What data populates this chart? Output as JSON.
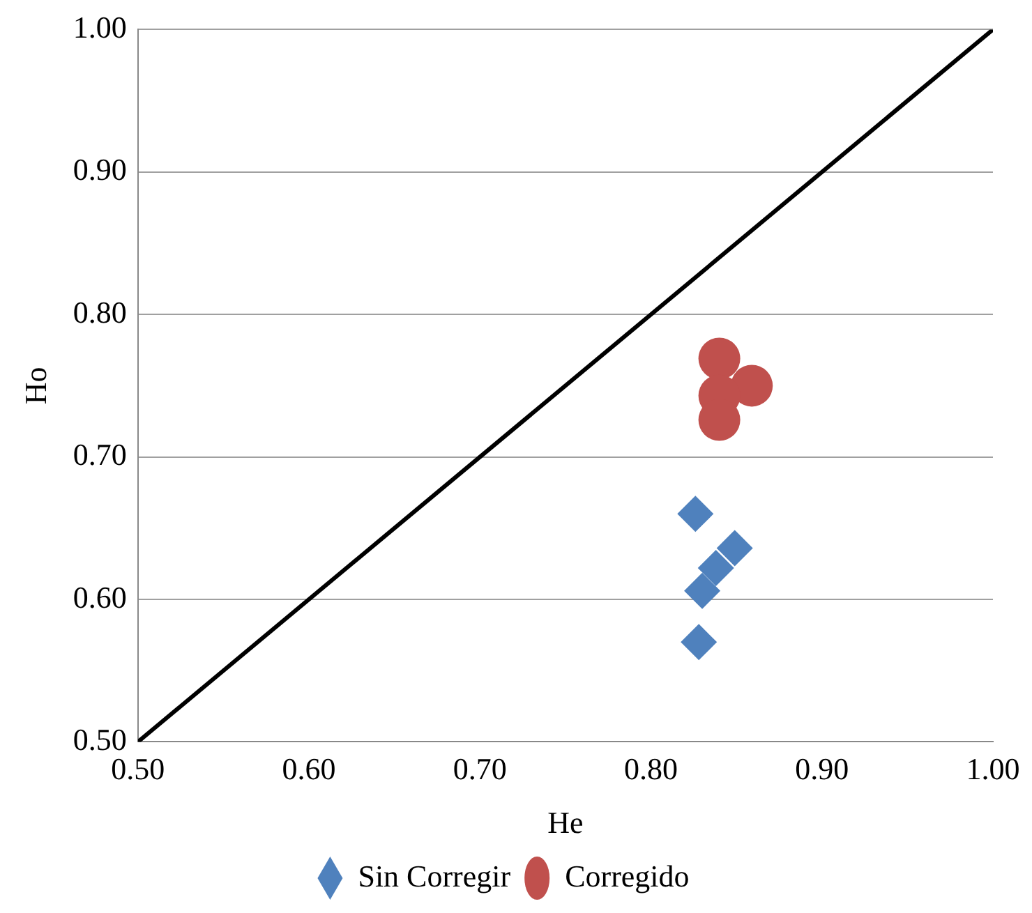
{
  "chart_data": {
    "type": "scatter",
    "xlabel": "He",
    "ylabel": "Ho",
    "xlim": [
      0.5,
      1.0
    ],
    "ylim": [
      0.5,
      1.0
    ],
    "xticks": [
      {
        "value": 0.5,
        "label": "0.50"
      },
      {
        "value": 0.6,
        "label": "0.60"
      },
      {
        "value": 0.7,
        "label": "0.70"
      },
      {
        "value": 0.8,
        "label": "0.80"
      },
      {
        "value": 0.9,
        "label": "0.90"
      },
      {
        "value": 1.0,
        "label": "1.00"
      }
    ],
    "yticks": [
      {
        "value": 0.5,
        "label": "0.50"
      },
      {
        "value": 0.6,
        "label": "0.60"
      },
      {
        "value": 0.7,
        "label": "0.70"
      },
      {
        "value": 0.8,
        "label": "0.80"
      },
      {
        "value": 0.9,
        "label": "0.90"
      },
      {
        "value": 1.0,
        "label": "1.00"
      }
    ],
    "grid": "y",
    "legend": "bottom",
    "series": [
      {
        "name": "Sin Corregir",
        "color": "#4f81bd",
        "marker": "diamond",
        "x": [
          0.826,
          0.849,
          0.838,
          0.83,
          0.828
        ],
        "values": [
          0.66,
          0.636,
          0.622,
          0.606,
          0.57
        ]
      },
      {
        "name": "Corregido",
        "color": "#c0504d",
        "marker": "circle",
        "x": [
          0.84,
          0.859,
          0.84,
          0.84
        ],
        "values": [
          0.769,
          0.75,
          0.743,
          0.726
        ]
      },
      {
        "type": "line",
        "color": "#000000",
        "marker": "none",
        "x": [
          0.5,
          1.0
        ],
        "values": [
          0.5,
          1.0
        ]
      }
    ]
  }
}
